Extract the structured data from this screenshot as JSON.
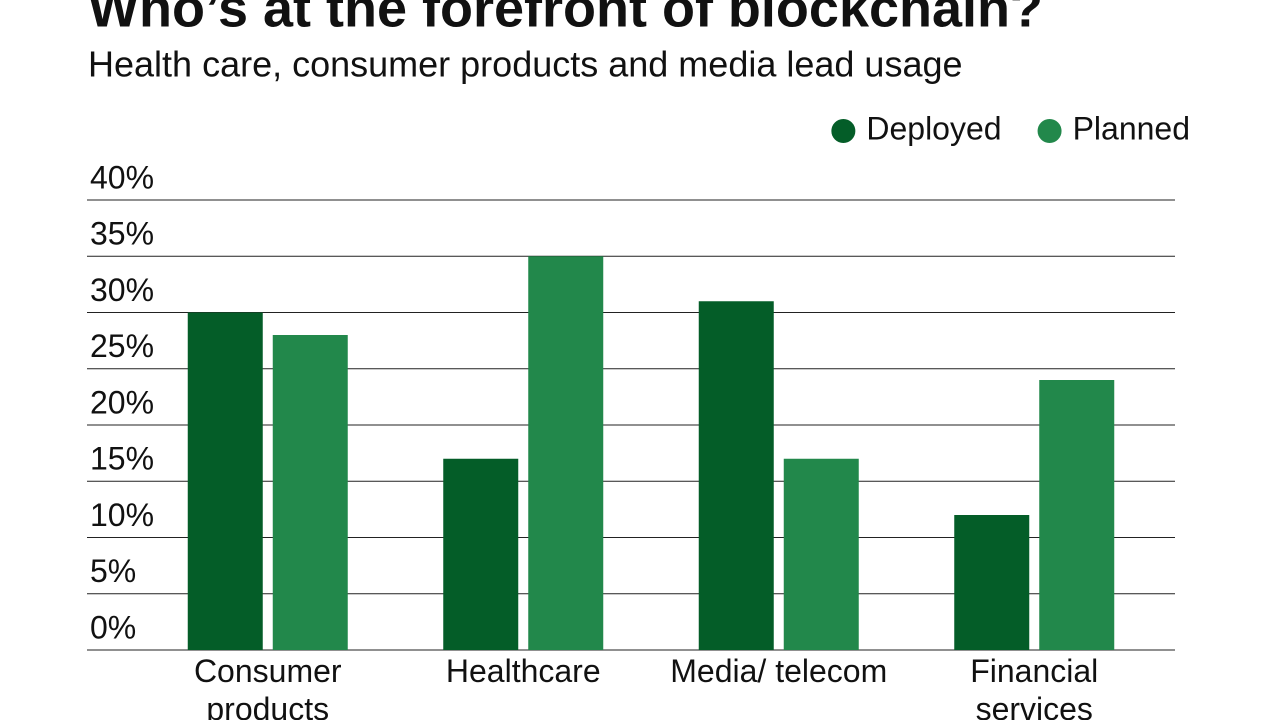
{
  "chart_data": {
    "type": "bar",
    "title": "Who’s at the forefront of blockchain?",
    "subtitle": "Health care, consumer products and media lead usage",
    "categories": [
      "Consumer products",
      "Healthcare",
      "Media/ telecom",
      "Financial services"
    ],
    "series": [
      {
        "name": "Deployed",
        "color": "#045d28",
        "values": [
          30,
          17,
          31,
          12
        ]
      },
      {
        "name": "Planned",
        "color": "#22884b",
        "values": [
          28,
          35,
          17,
          24
        ]
      }
    ],
    "ylim": [
      0,
      40
    ],
    "yticks": [
      {
        "value": 0,
        "label": "0%"
      },
      {
        "value": 5,
        "label": "5%"
      },
      {
        "value": 10,
        "label": "10%"
      },
      {
        "value": 15,
        "label": "15%"
      },
      {
        "value": 20,
        "label": "20%"
      },
      {
        "value": 25,
        "label": "25%"
      },
      {
        "value": 30,
        "label": "30%"
      },
      {
        "value": 35,
        "label": "35%"
      },
      {
        "value": 40,
        "label": "40%"
      }
    ],
    "grid": true,
    "legend": "top-right"
  }
}
